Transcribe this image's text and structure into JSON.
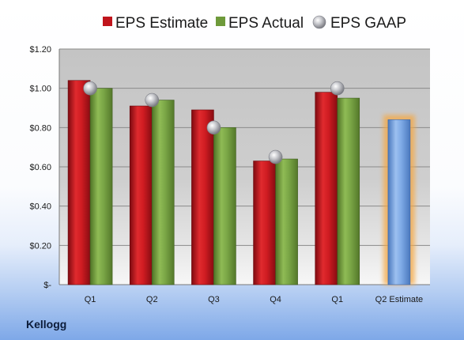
{
  "footer": {
    "company": "Kellogg"
  },
  "chart_data": {
    "type": "bar",
    "categories": [
      "Q1",
      "Q2",
      "Q3",
      "Q4",
      "Q1",
      "Q2 Estimate"
    ],
    "series": [
      {
        "name": "EPS Estimate",
        "kind": "bar",
        "color": "#c0141c",
        "values": [
          1.04,
          0.91,
          0.89,
          0.63,
          0.98,
          null
        ]
      },
      {
        "name": "EPS Actual",
        "kind": "bar",
        "color": "#6e9a3a",
        "values": [
          1.0,
          0.94,
          0.8,
          0.64,
          0.95,
          null
        ]
      },
      {
        "name": "EPS GAAP",
        "kind": "marker",
        "color": "#a9aab0",
        "values": [
          1.0,
          0.94,
          0.8,
          0.65,
          1.0,
          null
        ]
      }
    ],
    "estimate": {
      "category": "Q2 Estimate",
      "value": 0.84,
      "color": "#6f9fdc",
      "highlight": "#f5a742"
    },
    "y_ticks": [
      "$1.20",
      "$1.00",
      "$0.80",
      "$0.60",
      "$0.40",
      "$0.20",
      "$-"
    ],
    "ylim": [
      0,
      1.2
    ],
    "title": "",
    "xlabel": "",
    "ylabel": "",
    "grid": true,
    "legend_position": "top"
  }
}
